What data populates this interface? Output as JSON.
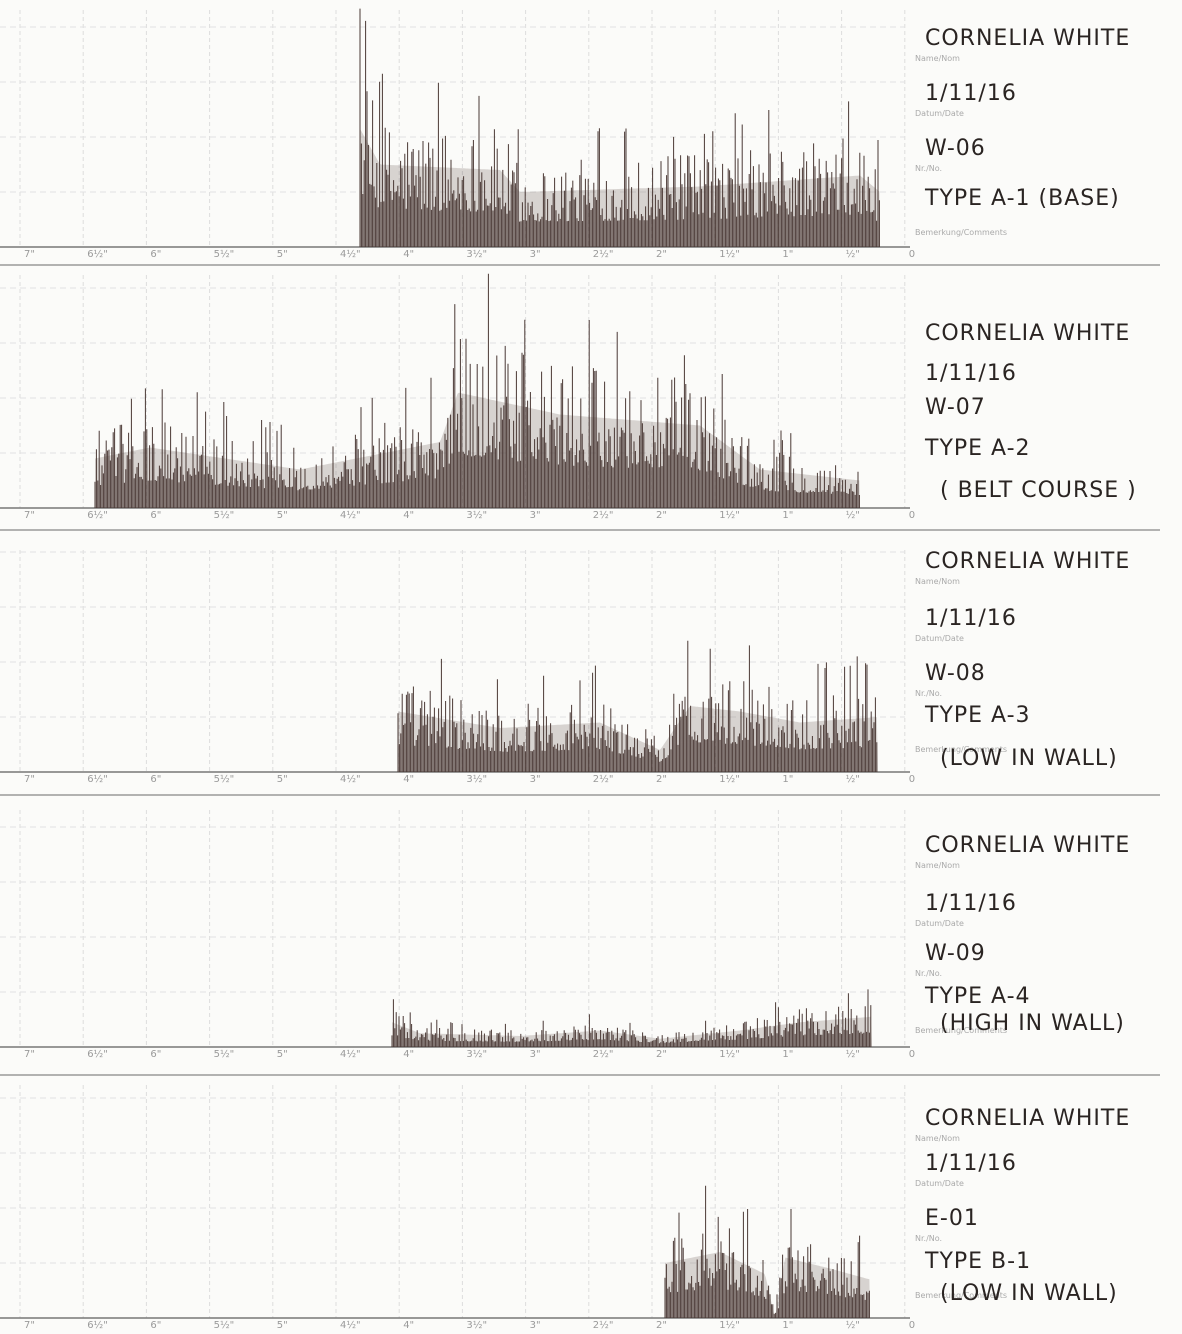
{
  "panels": [
    {
      "name": "CORNELIA WHITE",
      "date": "1/11/16",
      "id": "W-06",
      "type": "TYPE A-1 (BASE)"
    },
    {
      "name": "CORNELIA WHITE",
      "date": "1/11/16",
      "id": "W-07",
      "type": "TYPE A-2",
      "note": "( BELT COURSE )"
    },
    {
      "name": "CORNELIA WHITE",
      "date": "1/11/16",
      "id": "W-08",
      "type": "TYPE A-3",
      "note": "(LOW IN WALL)"
    },
    {
      "name": "CORNELIA WHITE",
      "date": "1/11/16",
      "id": "W-09",
      "type": "TYPE A-4",
      "note": "(HIGH IN WALL)"
    },
    {
      "name": "CORNELIA WHITE",
      "date": "1/11/16",
      "id": "E-01",
      "type": "TYPE B-1",
      "note": "(LOW IN WALL)"
    }
  ],
  "form_labels": {
    "name": "Name/Nom",
    "date": "Datum/Date",
    "id": "Nr./No.",
    "type": "Bemerkung/Comments"
  },
  "scale": [
    "7\"",
    "6½\"",
    "6\"",
    "5½\"",
    "5\"",
    "4½\"",
    "4\"",
    "3½\"",
    "3\"",
    "2½\"",
    "2\"",
    "1½\"",
    "1\"",
    "½\"",
    "0"
  ]
}
